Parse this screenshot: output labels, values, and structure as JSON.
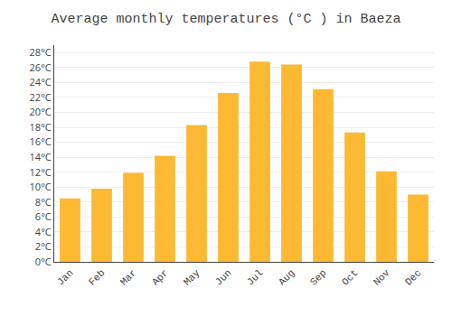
{
  "chart_data": {
    "type": "bar",
    "title": "Average monthly temperatures (°C ) in Baeza",
    "categories": [
      "Jan",
      "Feb",
      "Mar",
      "Apr",
      "May",
      "Jun",
      "Jul",
      "Aug",
      "Sep",
      "Oct",
      "Nov",
      "Dec"
    ],
    "values": [
      8.5,
      9.8,
      11.9,
      14.2,
      18.3,
      22.6,
      26.8,
      26.4,
      23.1,
      17.3,
      12.1,
      9.0
    ],
    "color": "#FDB931",
    "ylim": [
      0,
      29
    ],
    "yticks": [
      {
        "value": 0,
        "label": "0°C"
      },
      {
        "value": 2,
        "label": "2°C"
      },
      {
        "value": 4,
        "label": "4°C"
      },
      {
        "value": 6,
        "label": "6°C"
      },
      {
        "value": 8,
        "label": "8°C"
      },
      {
        "value": 10,
        "label": "10°C"
      },
      {
        "value": 12,
        "label": "12°C"
      },
      {
        "value": 14,
        "label": "14°C"
      },
      {
        "value": 16,
        "label": "16°C"
      },
      {
        "value": 18,
        "label": "18°C"
      },
      {
        "value": 20,
        "label": "20°C"
      },
      {
        "value": 22,
        "label": "22°C"
      },
      {
        "value": 24,
        "label": "24°C"
      },
      {
        "value": 26,
        "label": "26°C"
      },
      {
        "value": 28,
        "label": "28°C"
      }
    ],
    "grid": true
  }
}
